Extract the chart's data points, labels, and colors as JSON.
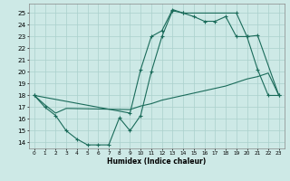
{
  "xlabel": "Humidex (Indice chaleur)",
  "bg_color": "#cde9e6",
  "grid_color": "#aad0cc",
  "line_color": "#1a6b5a",
  "xlim": [
    -0.5,
    23.5
  ],
  "ylim": [
    13.5,
    25.8
  ],
  "xtick_vals": [
    0,
    1,
    2,
    3,
    4,
    5,
    6,
    7,
    8,
    9,
    10,
    11,
    12,
    13,
    14,
    15,
    16,
    17,
    18,
    19,
    20,
    21,
    22,
    23
  ],
  "ytick_vals": [
    14,
    15,
    16,
    17,
    18,
    19,
    20,
    21,
    22,
    23,
    24,
    25
  ],
  "line1_x": [
    0,
    1,
    2,
    3,
    4,
    5,
    6,
    7,
    8,
    9,
    10,
    11,
    12,
    13,
    14,
    15,
    16,
    17,
    18,
    19,
    20,
    21,
    22,
    23
  ],
  "line1_y": [
    18.0,
    17.0,
    16.3,
    15.0,
    14.3,
    13.8,
    13.8,
    13.8,
    16.1,
    15.0,
    16.3,
    20.0,
    23.0,
    25.2,
    25.0,
    24.7,
    24.3,
    24.3,
    24.7,
    23.0,
    23.0,
    20.2,
    18.0,
    18.0
  ],
  "line2_x": [
    0,
    1,
    2,
    3,
    9,
    10,
    11,
    12,
    13,
    14,
    15,
    16,
    17,
    18,
    19,
    20,
    21,
    22,
    23
  ],
  "line2_y": [
    18.0,
    17.2,
    16.5,
    16.9,
    16.8,
    17.1,
    17.3,
    17.6,
    17.8,
    18.0,
    18.2,
    18.4,
    18.6,
    18.8,
    19.1,
    19.4,
    19.6,
    19.9,
    18.0
  ],
  "line3_x": [
    0,
    9,
    10,
    11,
    12,
    13,
    14,
    19,
    20,
    21,
    23
  ],
  "line3_y": [
    18.0,
    16.5,
    20.2,
    23.0,
    23.5,
    25.3,
    25.0,
    25.0,
    23.0,
    23.1,
    18.0
  ]
}
